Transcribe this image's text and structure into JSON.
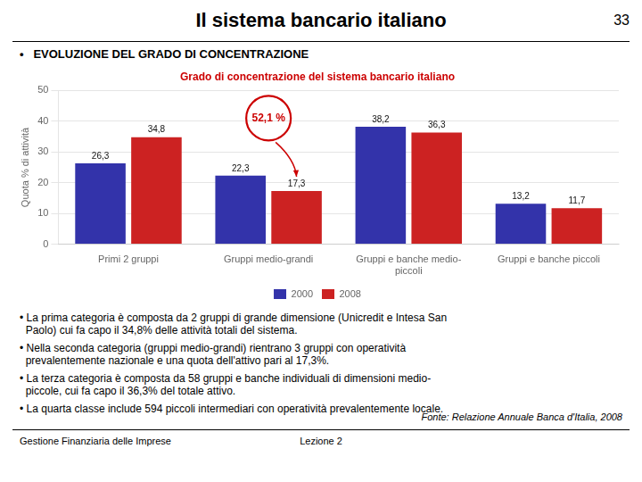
{
  "title": "Il sistema bancario italiano",
  "title_number": "33",
  "subtitle": "•   EVOLUZIONE DEL GRADO DI CONCENTRAZIONE",
  "notes": [
    "• La prima categoria è composta da 2 gruppi di grande dimensione (Unicredit e Intesa San",
    "  Paolo) cui fa capo il 34,8% delle attività totali del sistema.",
    "• Nella seconda categoria (gruppi medio-grandi) rientrano 3 gruppi con operatività",
    "  prevalentemente nazionale e una quota dell'attivo pari al 17,3%.",
    "• La terza categoria è composta da 58 gruppi e banche individuali di dimensioni medio-",
    "  piccole, cui fa capo il 36,3% del totale attivo.",
    "• La quarta classe include 594 piccoli intermediari con operatività prevalentemente locale."
  ],
  "source": "Fonte: Relazione Annuale Banca d'Italia, 2008",
  "footer_left": "Gestione Finanziaria delle Imprese",
  "footer_center": "Lezione 2",
  "chart_data": {
    "type": "bar",
    "title": "Grado di concentrazione del sistema bancario italiano",
    "categories": [
      "Primi 2 gruppi",
      "Gruppi medio-grandi",
      "Gruppi e banche medio-\npiccoli",
      "Gruppi e banche piccoli"
    ],
    "series": [
      {
        "name": "2000",
        "color": "#3333aa",
        "values": [
          26.3,
          22.3,
          38.2,
          13.2
        ],
        "value_labels": [
          "26,3",
          "22,3",
          "38,2",
          "13,2"
        ]
      },
      {
        "name": "2008",
        "color": "#cc2222",
        "values": [
          34.8,
          17.3,
          36.3,
          11.7
        ],
        "value_labels": [
          "34,8",
          "17,3",
          "36,3",
          "11,7"
        ]
      }
    ],
    "ylabel": "Quota % di attività",
    "ylim": [
      0,
      50
    ],
    "yticks": [
      0,
      10,
      20,
      30,
      40,
      50
    ],
    "grid": true,
    "legend": "bottom",
    "data_labels": true,
    "annotations": [
      "52,1 %"
    ]
  }
}
